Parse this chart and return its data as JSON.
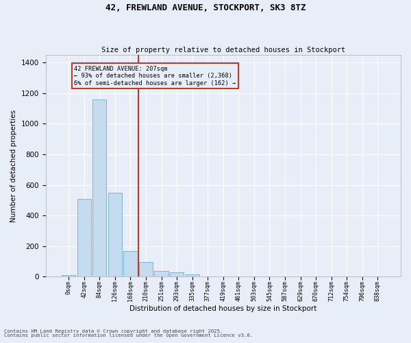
{
  "title_line1": "42, FREWLAND AVENUE, STOCKPORT, SK3 8TZ",
  "title_line2": "Size of property relative to detached houses in Stockport",
  "xlabel": "Distribution of detached houses by size in Stockport",
  "ylabel": "Number of detached properties",
  "categories": [
    "0sqm",
    "42sqm",
    "84sqm",
    "126sqm",
    "168sqm",
    "210sqm",
    "251sqm",
    "293sqm",
    "335sqm",
    "377sqm",
    "419sqm",
    "461sqm",
    "503sqm",
    "545sqm",
    "587sqm",
    "629sqm",
    "670sqm",
    "712sqm",
    "754sqm",
    "796sqm",
    "838sqm"
  ],
  "values": [
    10,
    510,
    1160,
    550,
    165,
    95,
    38,
    28,
    15,
    0,
    0,
    0,
    0,
    0,
    0,
    0,
    0,
    0,
    0,
    0,
    0
  ],
  "bar_color": "#c5dcee",
  "bar_edge_color": "#6aaed6",
  "vline_x": 4.5,
  "vline_color": "#c0392b",
  "annotation_text": "42 FREWLAND AVENUE: 207sqm\n← 93% of detached houses are smaller (2,368)\n6% of semi-detached houses are larger (162) →",
  "annotation_box_color": "#c0392b",
  "annotation_text_color": "#000000",
  "ylim": [
    0,
    1450
  ],
  "background_color": "#e8eef8",
  "grid_color": "#ffffff",
  "footer_line1": "Contains HM Land Registry data © Crown copyright and database right 2025.",
  "footer_line2": "Contains public sector information licensed under the Open Government Licence v3.0."
}
